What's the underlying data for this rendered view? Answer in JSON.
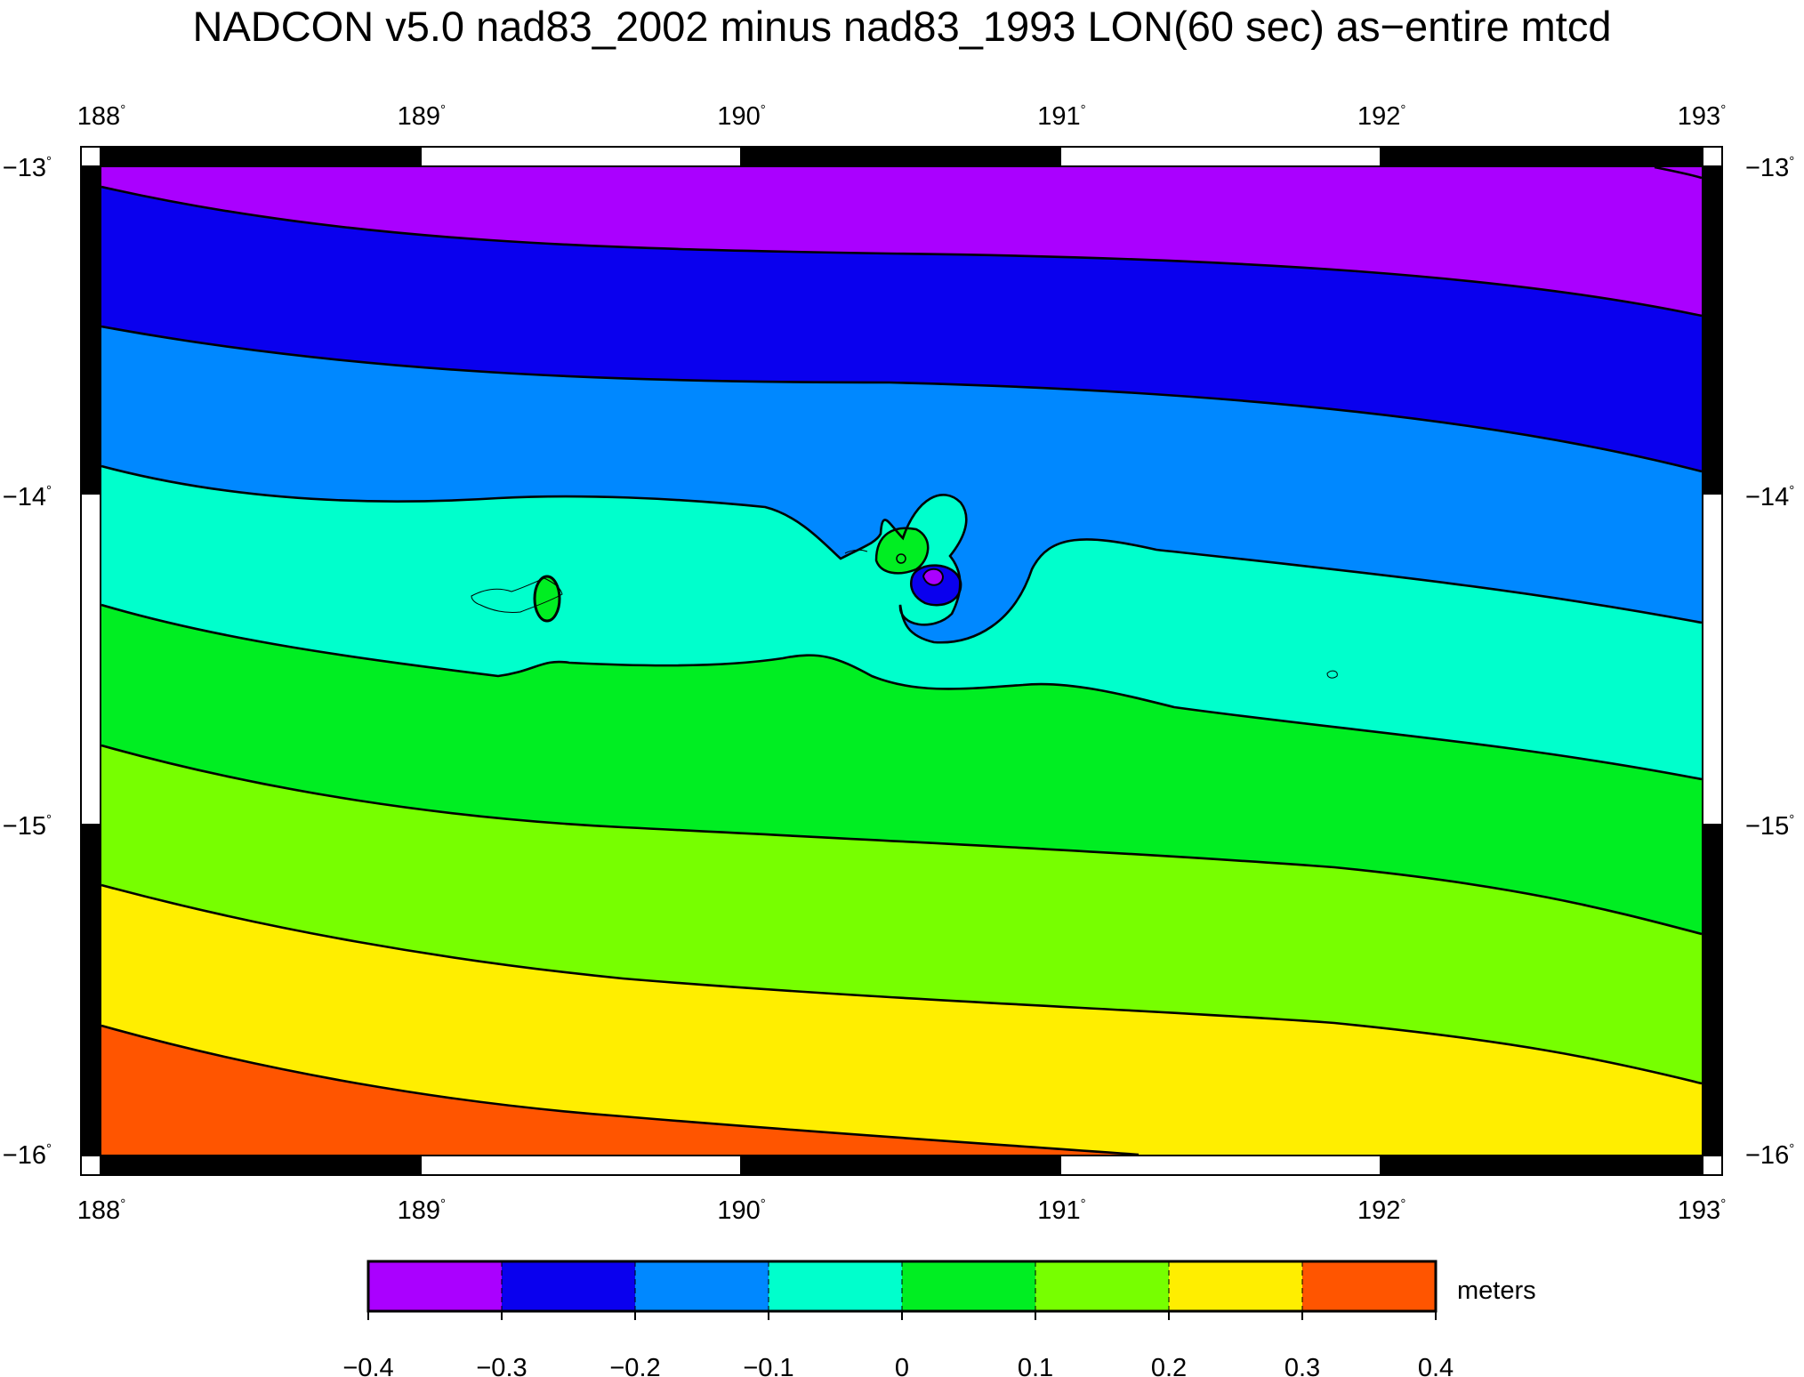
{
  "title": "NADCON v5.0 nad83_2002 minus nad83_1993 LON(60 sec) as−entire mtcd",
  "map": {
    "lon_range": [
      188,
      193
    ],
    "lat_range": [
      -16,
      -13
    ],
    "x_ticks": [
      "188",
      "189",
      "190",
      "191",
      "192",
      "193"
    ],
    "y_ticks": [
      "−13",
      "−14",
      "−15",
      "−16"
    ],
    "degree_symbol": "°",
    "frame_style": "alternating black/white checkerboard border"
  },
  "chart_data": {
    "type": "contour",
    "variable": "LON(60 sec)",
    "unit_label": "meters",
    "contour_levels": [
      -0.4,
      -0.3,
      -0.2,
      -0.1,
      0,
      0.1,
      0.2,
      0.3,
      0.4
    ],
    "colorbar": {
      "labels": [
        "−0.4",
        "−0.3",
        "−0.2",
        "−0.1",
        "0",
        "0.1",
        "0.2",
        "0.3",
        "0.4"
      ],
      "colors": [
        "#aa00ff",
        "#0a00ee",
        "#0088ff",
        "#00ffcc",
        "#00ee22",
        "#77ff00",
        "#ffee00",
        "#ff5500"
      ]
    },
    "features": [
      "Contour bands run roughly west-east, decreasing northward",
      "Local anomaly dipole near lon 190.6, lat -14.2 (low center magenta, high lobe green)",
      "Small island outlines near lon 189.3, lat -14.3 and lon 191.85, lat -14.5"
    ]
  }
}
